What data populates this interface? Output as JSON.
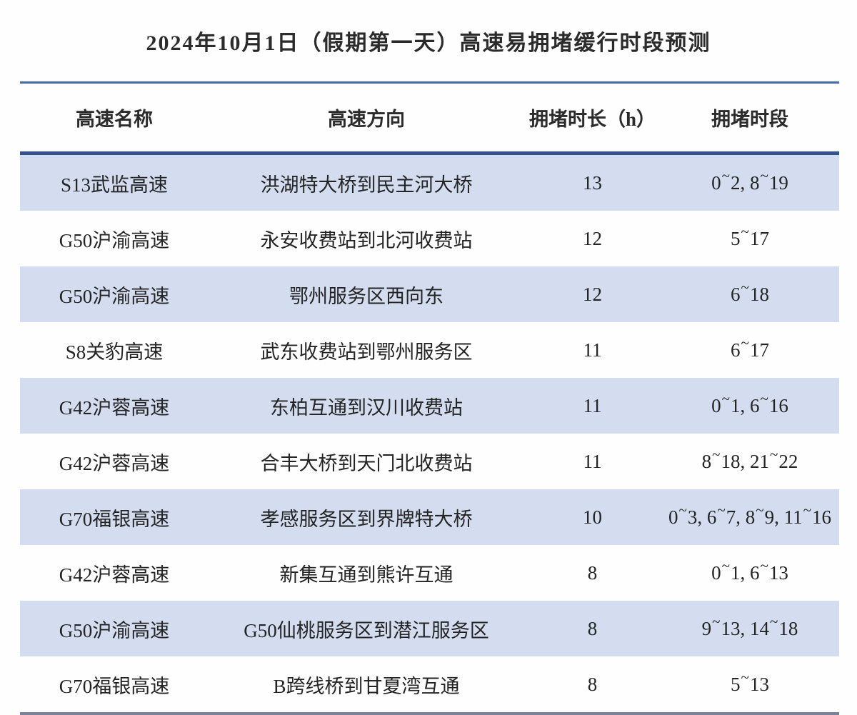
{
  "chart_data": {
    "type": "table",
    "title": "2024年10月1日（假期第一天）高速易拥堵缓行时段预测",
    "columns": [
      "高速名称",
      "高速方向",
      "拥堵时长（h）",
      "拥堵时段"
    ],
    "rows": [
      [
        "S13武监高速",
        "洪湖特大桥到民主河大桥",
        "13",
        "0~2, 8~19"
      ],
      [
        "G50沪渝高速",
        "永安收费站到北河收费站",
        "12",
        "5~17"
      ],
      [
        "G50沪渝高速",
        "鄂州服务区西向东",
        "12",
        "6~18"
      ],
      [
        "S8关豹高速",
        "武东收费站到鄂州服务区",
        "11",
        "6~17"
      ],
      [
        "G42沪蓉高速",
        "东柏互通到汉川收费站",
        "11",
        "0~1, 6~16"
      ],
      [
        "G42沪蓉高速",
        "合丰大桥到天门北收费站",
        "11",
        "8~18, 21~22"
      ],
      [
        "G70福银高速",
        "孝感服务区到界牌特大桥",
        "10",
        "0~3, 6~7, 8~9, 11~16"
      ],
      [
        "G42沪蓉高速",
        "新集互通到熊许互通",
        "8",
        "0~1, 6~13"
      ],
      [
        "G50沪渝高速",
        "G50仙桃服务区到潜江服务区",
        "8",
        "9~13, 14~18"
      ],
      [
        "G70福银高速",
        "B跨线桥到甘夏湾互通",
        "8",
        "5~13"
      ]
    ],
    "layout": {
      "striped": true,
      "stripe_color": "#d3ddef",
      "first_row_striped": true
    }
  },
  "colors": {
    "stripe_band": "#d3ddef",
    "rule_top": "#3f6aa6",
    "rule_header": "#33528e",
    "rule_bottom": "#7b8496",
    "text": "#262626"
  }
}
